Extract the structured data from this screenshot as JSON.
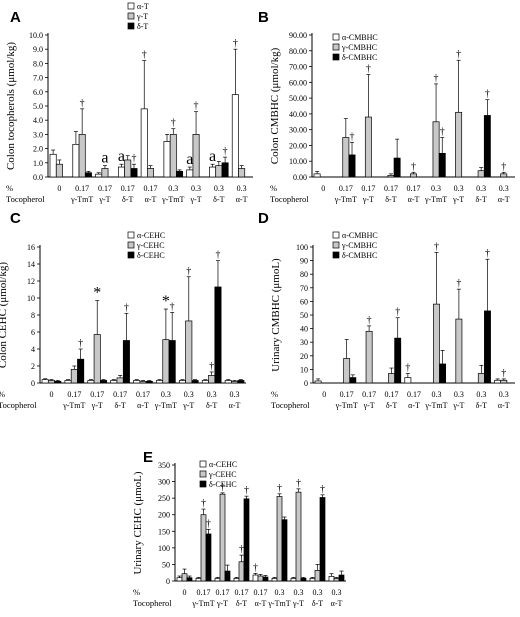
{
  "chart_data": [
    {
      "panel": "A",
      "type": "bar",
      "ylabel": "Colon tocopherols (μmol/kg)",
      "ylim": [
        0,
        10
      ],
      "yticks": [
        "0.0",
        "1.0",
        "2.0",
        "3.0",
        "4.0",
        "5.0",
        "6.0",
        "7.0",
        "8.0",
        "9.0",
        "10.0"
      ],
      "series_style": [
        "white",
        "lightgray",
        "black"
      ],
      "series": [
        {
          "name": "α-T",
          "values": [
            1.6,
            2.3,
            0.2,
            0.7,
            4.8,
            2.5,
            0.5,
            0.7,
            5.8
          ],
          "errors": [
            0.3,
            0.9,
            0.1,
            0.2,
            3.4,
            0.5,
            0.2,
            0.2,
            3.2
          ]
        },
        {
          "name": "γ-T",
          "values": [
            0.9,
            3.0,
            0.6,
            1.2,
            0.6,
            3.0,
            3.0,
            0.8,
            0.6
          ],
          "errors": [
            0.3,
            1.8,
            0.2,
            0.3,
            0.2,
            0.4,
            1.6,
            0.3,
            0.2
          ]
        },
        {
          "name": "δ-T",
          "values": [
            0,
            0.3,
            0,
            0.6,
            0,
            0.4,
            0,
            1.0,
            0
          ],
          "errors": [
            0,
            0.1,
            0,
            0.3,
            0,
            0.1,
            0,
            0.4,
            0
          ]
        }
      ],
      "annotations": [
        {
          "cat": 1,
          "series": 1,
          "text": "†"
        },
        {
          "cat": 2,
          "series": 1,
          "text": "a"
        },
        {
          "cat": 3,
          "series": 0,
          "text": "a"
        },
        {
          "cat": 3,
          "series": 2,
          "text": "†"
        },
        {
          "cat": 4,
          "series": 0,
          "text": "†"
        },
        {
          "cat": 5,
          "series": 1,
          "text": "†"
        },
        {
          "cat": 6,
          "series": 0,
          "text": "a"
        },
        {
          "cat": 6,
          "series": 1,
          "text": "†"
        },
        {
          "cat": 7,
          "series": 0,
          "text": "a"
        },
        {
          "cat": 7,
          "series": 2,
          "text": "†"
        },
        {
          "cat": 8,
          "series": 0,
          "text": "†"
        }
      ]
    },
    {
      "panel": "B",
      "type": "bar",
      "ylabel": "Colon CMBHC (μmol/kg)",
      "ylim": [
        0,
        90
      ],
      "yticks": [
        "0.00",
        "10.00",
        "20.00",
        "30.00",
        "40.00",
        "50.00",
        "60.00",
        "70.00",
        "80.00",
        "90.00"
      ],
      "series_style": [
        "white",
        "lightgray",
        "black"
      ],
      "series": [
        {
          "name": "α-CMBHC",
          "values": [
            2,
            0,
            0,
            0,
            0,
            0,
            0,
            0,
            0
          ],
          "errors": [
            1.5,
            0,
            0,
            0,
            0,
            0,
            0,
            0,
            0
          ]
        },
        {
          "name": "γ-CMBHC",
          "values": [
            0,
            25,
            38,
            1,
            2,
            35,
            41,
            4,
            2
          ],
          "errors": [
            0,
            12,
            27,
            1,
            1,
            24,
            33,
            2,
            1
          ]
        },
        {
          "name": "δ-CMBHC",
          "values": [
            0,
            14,
            0,
            12,
            0,
            15,
            0,
            39,
            0
          ],
          "errors": [
            0,
            8,
            0,
            12,
            0,
            10,
            0,
            10,
            0
          ]
        }
      ],
      "annotations": [
        {
          "cat": 1,
          "series": 2,
          "text": "†"
        },
        {
          "cat": 2,
          "series": 1,
          "text": "†"
        },
        {
          "cat": 4,
          "series": 1,
          "text": "†"
        },
        {
          "cat": 5,
          "series": 1,
          "text": "†"
        },
        {
          "cat": 5,
          "series": 2,
          "text": "†"
        },
        {
          "cat": 6,
          "series": 1,
          "text": "†"
        },
        {
          "cat": 7,
          "series": 2,
          "text": "†"
        },
        {
          "cat": 8,
          "series": 1,
          "text": "†"
        }
      ]
    },
    {
      "panel": "C",
      "type": "bar",
      "ylabel": "Colon CEHC (μmol/kg)",
      "ylim": [
        0,
        16
      ],
      "yticks": [
        "0",
        "2",
        "4",
        "6",
        "8",
        "10",
        "12",
        "14",
        "16"
      ],
      "series_style": [
        "white",
        "lightgray",
        "black"
      ],
      "series": [
        {
          "name": "α-CEHC",
          "values": [
            0.4,
            0.3,
            0.3,
            0.3,
            0.3,
            0.3,
            0.3,
            0.3,
            0.3
          ],
          "errors": [
            0.1,
            0.1,
            0.1,
            0.1,
            0.1,
            0.1,
            0.1,
            0.1,
            0.1
          ]
        },
        {
          "name": "γ-CEHC",
          "values": [
            0.3,
            1.6,
            5.7,
            0.6,
            0.2,
            5.1,
            7.3,
            0.9,
            0.2
          ],
          "errors": [
            0.1,
            0.4,
            4.0,
            0.3,
            0.1,
            3.6,
            5.2,
            0.4,
            0.1
          ]
        },
        {
          "name": "δ-CEHC",
          "values": [
            0.2,
            2.8,
            0.3,
            5.0,
            0.2,
            5.0,
            0.3,
            11.3,
            0.3
          ],
          "errors": [
            0.1,
            1.2,
            0.1,
            3.2,
            0.1,
            3.3,
            0.1,
            3.1,
            0.1
          ]
        }
      ],
      "annotations": [
        {
          "cat": 1,
          "series": 2,
          "text": "†"
        },
        {
          "cat": 2,
          "series": 1,
          "text": "*"
        },
        {
          "cat": 3,
          "series": 2,
          "text": "†"
        },
        {
          "cat": 5,
          "series": 1,
          "text": "*"
        },
        {
          "cat": 5,
          "series": 2,
          "text": "†"
        },
        {
          "cat": 6,
          "series": 1,
          "text": "†"
        },
        {
          "cat": 7,
          "series": 1,
          "text": "†"
        },
        {
          "cat": 7,
          "series": 2,
          "text": "†"
        }
      ]
    },
    {
      "panel": "D",
      "type": "bar",
      "ylabel": "Urinary CMBHC (μmoL)",
      "ylim": [
        0,
        100
      ],
      "yticks": [
        "0",
        "10",
        "20",
        "30",
        "40",
        "50",
        "60",
        "70",
        "80",
        "90",
        "100"
      ],
      "series_style": [
        "white",
        "lightgray",
        "black"
      ],
      "series": [
        {
          "name": "α-CMBHC",
          "values": [
            1.5,
            0,
            0,
            0,
            4,
            0,
            0,
            0,
            2
          ],
          "errors": [
            1.5,
            0,
            0,
            0,
            3,
            0,
            0,
            0,
            1
          ]
        },
        {
          "name": "γ-CMBHC",
          "values": [
            0,
            18,
            38,
            7,
            0,
            58,
            47,
            7,
            2
          ],
          "errors": [
            0,
            14,
            4,
            4,
            0,
            38,
            22,
            6,
            1
          ]
        },
        {
          "name": "δ-CMBHC",
          "values": [
            0,
            4,
            0,
            33,
            0,
            14,
            0,
            53,
            0
          ],
          "errors": [
            0,
            2,
            0,
            15,
            0,
            10,
            0,
            38,
            0
          ]
        }
      ],
      "annotations": [
        {
          "cat": 2,
          "series": 1,
          "text": "†"
        },
        {
          "cat": 3,
          "series": 2,
          "text": "†"
        },
        {
          "cat": 4,
          "series": 0,
          "text": "†"
        },
        {
          "cat": 5,
          "series": 1,
          "text": "†"
        },
        {
          "cat": 6,
          "series": 1,
          "text": "†"
        },
        {
          "cat": 7,
          "series": 2,
          "text": "†"
        },
        {
          "cat": 8,
          "series": 1,
          "text": "†"
        }
      ]
    },
    {
      "panel": "E",
      "type": "bar",
      "ylabel": "Urinary CEHC (μmoL)",
      "ylim": [
        0,
        350
      ],
      "yticks": [
        "0",
        "50",
        "100",
        "150",
        "200",
        "250",
        "300",
        "350"
      ],
      "series_style": [
        "white",
        "lightgray",
        "black"
      ],
      "series": [
        {
          "name": "α-CEHC",
          "values": [
            10,
            8,
            8,
            8,
            18,
            8,
            8,
            8,
            14
          ],
          "errors": [
            5,
            3,
            3,
            3,
            5,
            3,
            3,
            3,
            8
          ]
        },
        {
          "name": "γ-CEHC",
          "values": [
            22,
            200,
            262,
            58,
            15,
            255,
            268,
            32,
            8
          ],
          "errors": [
            14,
            17,
            4,
            20,
            5,
            8,
            10,
            18,
            3
          ]
        },
        {
          "name": "δ-CEHC",
          "values": [
            10,
            142,
            30,
            248,
            12,
            185,
            8,
            252,
            18
          ],
          "errors": [
            5,
            14,
            18,
            8,
            5,
            8,
            3,
            8,
            12
          ]
        }
      ],
      "annotations": [
        {
          "cat": 1,
          "series": 1,
          "text": "†"
        },
        {
          "cat": 1,
          "series": 2,
          "text": "†"
        },
        {
          "cat": 2,
          "series": 1,
          "text": "†"
        },
        {
          "cat": 3,
          "series": 1,
          "text": "†"
        },
        {
          "cat": 3,
          "series": 2,
          "text": "†"
        },
        {
          "cat": 4,
          "series": 0,
          "text": "†"
        },
        {
          "cat": 5,
          "series": 1,
          "text": "†"
        },
        {
          "cat": 6,
          "series": 1,
          "text": "†"
        },
        {
          "cat": 7,
          "series": 2,
          "text": "†"
        }
      ]
    }
  ],
  "categories": {
    "row_pct_label": "%",
    "row_toco_label": "Tocopherol",
    "pct": [
      "0",
      "0.17",
      "0.17",
      "0.17",
      "0.17",
      "0.3",
      "0.3",
      "0.3",
      "0.3"
    ],
    "toco": [
      "",
      "γ-TmT",
      "γ-T",
      "δ-T",
      "α-T",
      "γ-TmT",
      "γ-T",
      "δ-T",
      "α-T"
    ]
  },
  "colors": {
    "series_fill": [
      "#ffffff",
      "#c8c8c8",
      "#000000"
    ],
    "axis": "#000000"
  }
}
